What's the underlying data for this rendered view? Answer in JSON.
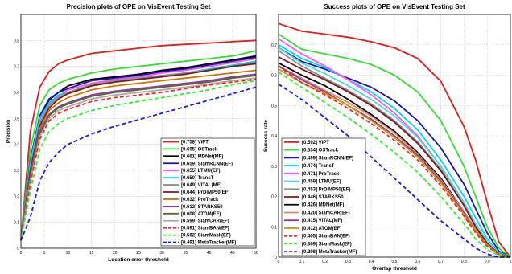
{
  "chart_data": [
    {
      "type": "line",
      "title": "Precision plots of OPE on VisEvent Testing Set",
      "xlabel": "Location error threshold",
      "ylabel": "Precision",
      "xlim": [
        0,
        50
      ],
      "ylim": [
        0,
        0.9
      ],
      "xticks": [
        "0",
        "5",
        "10",
        "15",
        "20",
        "25",
        "30",
        "35",
        "40",
        "45",
        "50"
      ],
      "yticks": [
        "0",
        "0.1",
        "0.2",
        "0.3",
        "0.4",
        "0.5",
        "0.6",
        "0.7",
        "0.8"
      ],
      "grid": true,
      "legend_position": "bottom-right",
      "x": [
        0,
        2,
        4,
        6,
        8,
        10,
        15,
        20,
        25,
        30,
        35,
        40,
        45,
        50
      ],
      "series": [
        {
          "name": "ViPT",
          "score": "[0.758]",
          "color": "#e41a1c",
          "dash": "solid",
          "values": [
            0.03,
            0.45,
            0.62,
            0.68,
            0.71,
            0.725,
            0.75,
            0.76,
            0.77,
            0.78,
            0.785,
            0.79,
            0.795,
            0.8
          ]
        },
        {
          "name": "OSTrack",
          "score": "[0.695]",
          "color": "#33dd33",
          "dash": "solid",
          "values": [
            0.03,
            0.38,
            0.55,
            0.61,
            0.635,
            0.65,
            0.675,
            0.69,
            0.7,
            0.71,
            0.72,
            0.73,
            0.74,
            0.76
          ]
        },
        {
          "name": "MDNet(MF)",
          "score": "[0.661]",
          "color": "#000000",
          "dash": "solid",
          "values": [
            0.03,
            0.32,
            0.5,
            0.57,
            0.6,
            0.625,
            0.65,
            0.66,
            0.67,
            0.685,
            0.695,
            0.71,
            0.725,
            0.74
          ]
        },
        {
          "name": "SiamRCNN(EF)",
          "score": "[0.659]",
          "color": "#1515b0",
          "dash": "solid",
          "values": [
            0.03,
            0.34,
            0.51,
            0.575,
            0.6,
            0.615,
            0.645,
            0.655,
            0.665,
            0.68,
            0.69,
            0.705,
            0.72,
            0.735
          ]
        },
        {
          "name": "LTMU(EF)",
          "score": "[0.655]",
          "color": "#ff55ff",
          "dash": "solid",
          "values": [
            0.03,
            0.32,
            0.49,
            0.555,
            0.585,
            0.61,
            0.635,
            0.65,
            0.66,
            0.675,
            0.685,
            0.7,
            0.715,
            0.73
          ]
        },
        {
          "name": "TransT",
          "score": "[0.650]",
          "color": "#00d8e8",
          "dash": "solid",
          "values": [
            0.03,
            0.33,
            0.5,
            0.56,
            0.59,
            0.6,
            0.63,
            0.645,
            0.655,
            0.665,
            0.675,
            0.69,
            0.705,
            0.72
          ]
        },
        {
          "name": "VITAL(MF)",
          "score": "[0.649]",
          "color": "#8c8c8c",
          "dash": "solid",
          "values": [
            0.03,
            0.3,
            0.48,
            0.55,
            0.58,
            0.6,
            0.63,
            0.645,
            0.655,
            0.665,
            0.675,
            0.685,
            0.7,
            0.715
          ]
        },
        {
          "name": "PrDiMP50(EF)",
          "score": "[0.644]",
          "color": "#7a1a1a",
          "dash": "solid",
          "values": [
            0.03,
            0.3,
            0.47,
            0.54,
            0.575,
            0.595,
            0.625,
            0.64,
            0.65,
            0.66,
            0.67,
            0.685,
            0.7,
            0.71
          ]
        },
        {
          "name": "ProTrack",
          "score": "[0.632]",
          "color": "#cc7700",
          "dash": "solid",
          "values": [
            0.03,
            0.28,
            0.46,
            0.53,
            0.56,
            0.58,
            0.61,
            0.625,
            0.635,
            0.645,
            0.655,
            0.665,
            0.675,
            0.685
          ]
        },
        {
          "name": "STARKS50",
          "score": "[0.612]",
          "color": "#8a3ab8",
          "dash": "solid",
          "values": [
            0.03,
            0.28,
            0.45,
            0.515,
            0.545,
            0.56,
            0.59,
            0.605,
            0.615,
            0.625,
            0.635,
            0.645,
            0.66,
            0.67
          ]
        },
        {
          "name": "ATOM(EF)",
          "score": "[0.608]",
          "color": "#5a6a2a",
          "dash": "solid",
          "values": [
            0.03,
            0.27,
            0.44,
            0.51,
            0.54,
            0.555,
            0.585,
            0.6,
            0.61,
            0.62,
            0.63,
            0.64,
            0.655,
            0.665
          ]
        },
        {
          "name": "SiamCAR(EF)",
          "score": "[0.599]",
          "color": "#aaaaaa",
          "dash": "solid",
          "values": [
            0.03,
            0.26,
            0.43,
            0.5,
            0.53,
            0.545,
            0.575,
            0.59,
            0.6,
            0.61,
            0.62,
            0.632,
            0.645,
            0.655
          ]
        },
        {
          "name": "SiamBAN(EF)",
          "score": "[0.591]",
          "color": "#ff2222",
          "dash": "dashed",
          "values": [
            0.03,
            0.25,
            0.42,
            0.49,
            0.52,
            0.535,
            0.565,
            0.58,
            0.59,
            0.6,
            0.615,
            0.628,
            0.64,
            0.65
          ]
        },
        {
          "name": "SiamMask(EF)",
          "score": "[0.562]",
          "color": "#33ee33",
          "dash": "dashed",
          "values": [
            0.03,
            0.22,
            0.38,
            0.45,
            0.48,
            0.5,
            0.53,
            0.55,
            0.565,
            0.58,
            0.595,
            0.61,
            0.63,
            0.645
          ]
        },
        {
          "name": "MetaTracker(MF)",
          "score": "[0.491]",
          "color": "#1a1ae6",
          "dash": "dashed",
          "values": [
            0.03,
            0.12,
            0.26,
            0.33,
            0.37,
            0.4,
            0.44,
            0.47,
            0.495,
            0.52,
            0.545,
            0.57,
            0.595,
            0.62
          ]
        }
      ]
    },
    {
      "type": "line",
      "title": "Success plots of OPE on VisEvent Testing Set",
      "xlabel": "Overlap threshold",
      "ylabel": "Success rate",
      "xlim": [
        0,
        1
      ],
      "ylim": [
        0,
        0.8
      ],
      "xticks": [
        "0",
        "0.1",
        "0.2",
        "0.3",
        "0.4",
        "0.5",
        "0.6",
        "0.7",
        "0.8",
        "0.9",
        "1"
      ],
      "yticks": [
        "0",
        "0.1",
        "0.2",
        "0.3",
        "0.4",
        "0.5",
        "0.6",
        "0.7"
      ],
      "grid": true,
      "legend_position": "bottom-left",
      "x": [
        0,
        0.1,
        0.2,
        0.3,
        0.4,
        0.5,
        0.6,
        0.7,
        0.8,
        0.85,
        0.9,
        0.95,
        1.0
      ],
      "series": [
        {
          "name": "ViPT",
          "score": "[0.592]",
          "color": "#e41a1c",
          "dash": "solid",
          "values": [
            0.77,
            0.745,
            0.735,
            0.725,
            0.71,
            0.69,
            0.655,
            0.58,
            0.43,
            0.32,
            0.18,
            0.05,
            0.0
          ]
        },
        {
          "name": "OSTrack",
          "score": "[0.534]",
          "color": "#33dd33",
          "dash": "solid",
          "values": [
            0.735,
            0.685,
            0.67,
            0.655,
            0.635,
            0.6,
            0.545,
            0.45,
            0.3,
            0.2,
            0.1,
            0.03,
            0.0
          ]
        },
        {
          "name": "SiamRCNN(EF)",
          "score": "[0.499]",
          "color": "#1515b0",
          "dash": "solid",
          "values": [
            0.69,
            0.645,
            0.62,
            0.59,
            0.56,
            0.515,
            0.45,
            0.36,
            0.24,
            0.16,
            0.08,
            0.02,
            0.0
          ]
        },
        {
          "name": "TransT",
          "score": "[0.474]",
          "color": "#00d8e8",
          "dash": "solid",
          "values": [
            0.7,
            0.655,
            0.625,
            0.585,
            0.545,
            0.49,
            0.42,
            0.32,
            0.2,
            0.13,
            0.06,
            0.015,
            0.0
          ]
        },
        {
          "name": "ProTrack",
          "score": "[0.471]",
          "color": "#ff55ff",
          "dash": "solid",
          "values": [
            0.72,
            0.67,
            0.63,
            0.585,
            0.535,
            0.475,
            0.4,
            0.3,
            0.18,
            0.11,
            0.05,
            0.01,
            0.0
          ]
        },
        {
          "name": "LTMU(EF)",
          "score": "[0.459]",
          "color": "#4fd6e0",
          "dash": "solid",
          "values": [
            0.69,
            0.64,
            0.605,
            0.565,
            0.52,
            0.465,
            0.395,
            0.3,
            0.18,
            0.11,
            0.05,
            0.01,
            0.0
          ]
        },
        {
          "name": "PrDiMP50(EF)",
          "score": "[0.453]",
          "color": "#8c8c8c",
          "dash": "solid",
          "values": [
            0.68,
            0.63,
            0.59,
            0.55,
            0.505,
            0.45,
            0.38,
            0.29,
            0.17,
            0.1,
            0.045,
            0.01,
            0.0
          ]
        },
        {
          "name": "STARKS50",
          "score": "[0.446]",
          "color": "#7a1a1a",
          "dash": "solid",
          "values": [
            0.66,
            0.62,
            0.585,
            0.545,
            0.5,
            0.445,
            0.375,
            0.285,
            0.17,
            0.1,
            0.045,
            0.01,
            0.0
          ]
        },
        {
          "name": "MDNet(MF)",
          "score": "[0.426]",
          "color": "#000000",
          "dash": "solid",
          "values": [
            0.64,
            0.6,
            0.565,
            0.52,
            0.47,
            0.415,
            0.345,
            0.26,
            0.15,
            0.09,
            0.04,
            0.01,
            0.0
          ]
        },
        {
          "name": "SiamCAR(EF)",
          "score": "[0.420]",
          "color": "#e08a5a",
          "dash": "solid",
          "values": [
            0.63,
            0.59,
            0.55,
            0.51,
            0.465,
            0.41,
            0.34,
            0.255,
            0.15,
            0.09,
            0.04,
            0.01,
            0.0
          ]
        },
        {
          "name": "VITAL(MF)",
          "score": "[0.415]",
          "color": "#8a3ab8",
          "dash": "solid",
          "values": [
            0.63,
            0.585,
            0.545,
            0.5,
            0.455,
            0.4,
            0.335,
            0.25,
            0.145,
            0.085,
            0.04,
            0.01,
            0.0
          ]
        },
        {
          "name": "ATOM(EF)",
          "score": "[0.412]",
          "color": "#cc9a00",
          "dash": "solid",
          "values": [
            0.62,
            0.575,
            0.54,
            0.5,
            0.45,
            0.395,
            0.33,
            0.245,
            0.14,
            0.085,
            0.04,
            0.01,
            0.0
          ]
        },
        {
          "name": "SiamBAN(EF)",
          "score": "[0.405]",
          "color": "#ff2222",
          "dash": "dashed",
          "values": [
            0.63,
            0.575,
            0.535,
            0.49,
            0.44,
            0.385,
            0.32,
            0.235,
            0.135,
            0.08,
            0.035,
            0.01,
            0.0
          ]
        },
        {
          "name": "SiamMask(EF)",
          "score": "[0.369]",
          "color": "#33ee33",
          "dash": "dashed",
          "values": [
            0.61,
            0.56,
            0.51,
            0.46,
            0.405,
            0.345,
            0.28,
            0.2,
            0.11,
            0.06,
            0.025,
            0.005,
            0.0
          ]
        },
        {
          "name": "MetaTracker(MF)",
          "score": "[0.298]",
          "color": "#1a1ae6",
          "dash": "dashed",
          "values": [
            0.57,
            0.52,
            0.46,
            0.4,
            0.33,
            0.26,
            0.19,
            0.12,
            0.06,
            0.03,
            0.01,
            0.0,
            0.0
          ]
        }
      ]
    }
  ]
}
